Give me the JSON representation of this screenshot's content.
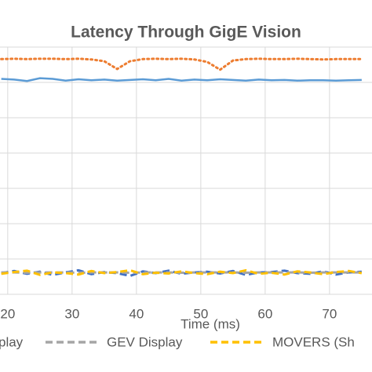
{
  "chart_data": {
    "type": "line",
    "title": "Latency Through GigE Vision",
    "x_label": "Time (ms)",
    "x": [
      19,
      21,
      23,
      25,
      27,
      29,
      31,
      33,
      35,
      37,
      39,
      41,
      43,
      45,
      47,
      49,
      51,
      53,
      55,
      57,
      59,
      61,
      63,
      65,
      67,
      69,
      71,
      73,
      75
    ],
    "xlim": [
      18.8,
      76.6
    ],
    "xticks": [
      20,
      30,
      40,
      50,
      60,
      70
    ],
    "ylim": [
      0,
      7
    ],
    "grid": true,
    "series": [
      {
        "color": "#5b9bd5",
        "style": "solid",
        "values": [
          6.1,
          6.08,
          6.04,
          6.12,
          6.1,
          6.05,
          6.09,
          6.06,
          6.08,
          6.05,
          6.07,
          6.09,
          6.06,
          6.1,
          6.05,
          6.08,
          6.06,
          6.09,
          6.07,
          6.05,
          6.08,
          6.06,
          6.07,
          6.05,
          6.06,
          6.06,
          6.05,
          6.06,
          6.07
        ]
      },
      {
        "color": "#ed7d31",
        "style": "dotted",
        "values": [
          6.66,
          6.67,
          6.66,
          6.67,
          6.67,
          6.66,
          6.67,
          6.65,
          6.6,
          6.38,
          6.6,
          6.66,
          6.67,
          6.66,
          6.67,
          6.65,
          6.58,
          6.36,
          6.62,
          6.66,
          6.67,
          6.66,
          6.66,
          6.67,
          6.66,
          6.65,
          6.66,
          6.66,
          6.66
        ]
      },
      {
        "name": "play",
        "color": "#4472c4",
        "style": "dashed",
        "values": [
          0.6,
          0.66,
          0.58,
          0.64,
          0.55,
          0.62,
          0.68,
          0.57,
          0.63,
          0.6,
          0.52,
          0.65,
          0.6,
          0.67,
          0.58,
          0.62,
          0.64,
          0.59,
          0.66,
          0.55,
          0.62,
          0.63,
          0.67,
          0.6,
          0.58,
          0.65,
          0.56,
          0.62,
          0.64
        ]
      },
      {
        "name": "GEV Display",
        "color": "#a5a5a5",
        "style": "dashed",
        "values": [
          0.62,
          0.62,
          0.61,
          0.62,
          0.62,
          0.62,
          0.61,
          0.62,
          0.62,
          0.62,
          0.61,
          0.62,
          0.62,
          0.62,
          0.61,
          0.62,
          0.62,
          0.62,
          0.62,
          0.61,
          0.62,
          0.62,
          0.62,
          0.62,
          0.61,
          0.62,
          0.62,
          0.62,
          0.62
        ]
      },
      {
        "name": "MOVERS (Sh",
        "color": "#ffc000",
        "style": "dashed",
        "values": [
          0.58,
          0.63,
          0.67,
          0.55,
          0.62,
          0.6,
          0.56,
          0.66,
          0.6,
          0.63,
          0.68,
          0.57,
          0.61,
          0.59,
          0.65,
          0.6,
          0.57,
          0.64,
          0.6,
          0.68,
          0.58,
          0.61,
          0.56,
          0.65,
          0.62,
          0.57,
          0.63,
          0.66,
          0.6
        ]
      }
    ]
  }
}
